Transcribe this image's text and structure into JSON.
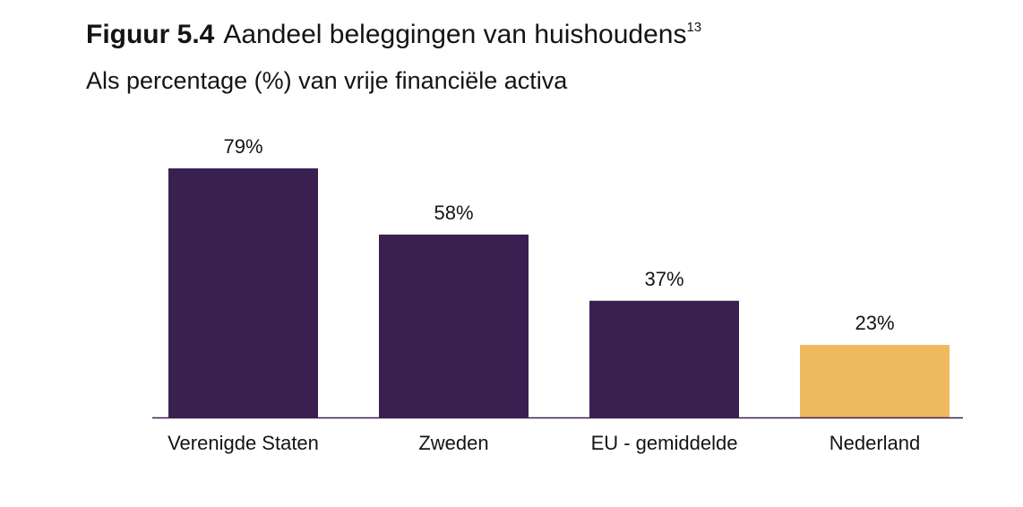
{
  "figure": {
    "label": "Figuur 5.4",
    "title": "Aandeel beleggingen van huishoudens",
    "footnote": "13",
    "subtitle": "Als percentage (%) van vrije financiële activa"
  },
  "chart_data": {
    "type": "bar",
    "categories": [
      "Verenigde Staten",
      "Zweden",
      "EU-gemiddelde",
      "Nederland"
    ],
    "category_labels": [
      "Verenigde Staten",
      "Zweden",
      "EU - gemiddelde",
      "Nederland"
    ],
    "values": [
      79,
      58,
      37,
      23
    ],
    "data_labels": [
      "79%",
      "58%",
      "37%",
      "23%"
    ],
    "unit": "%",
    "ylim": [
      0,
      100
    ],
    "grid": false,
    "legend": "none",
    "colors": [
      "#3a2051",
      "#3a2051",
      "#3a2051",
      "#efba5f"
    ],
    "axis_color": "#3a2051"
  }
}
